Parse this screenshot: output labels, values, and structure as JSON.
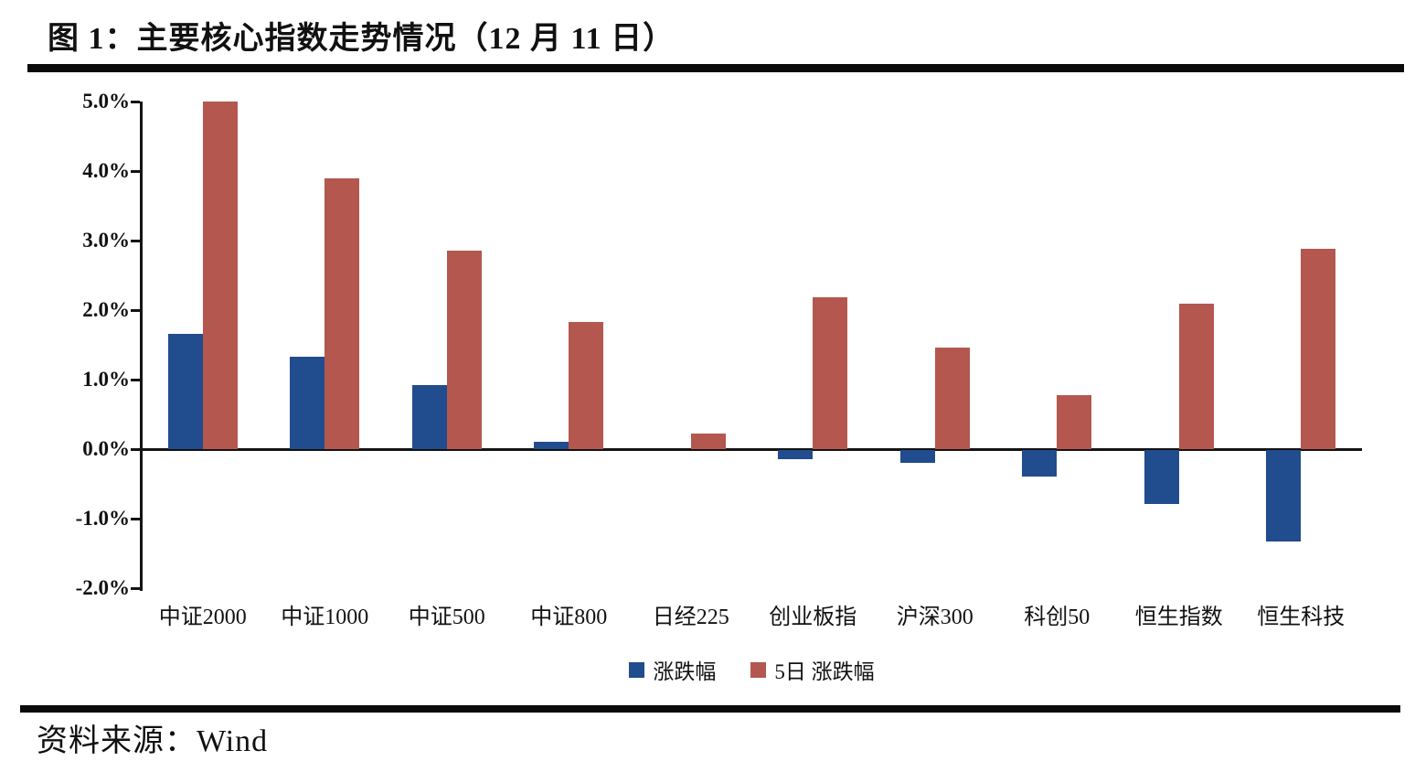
{
  "title": "图 1：主要核心指数走势情况（12 月 11 日）",
  "source": "资料来源：Wind",
  "chart_data": {
    "type": "bar",
    "title": "主要核心指数走势情况（12月11日）",
    "categories": [
      "中证2000",
      "中证1000",
      "中证500",
      "中证800",
      "日经225",
      "创业板指",
      "沪深300",
      "科创50",
      "恒生指数",
      "恒生科技"
    ],
    "series": [
      {
        "name": "涨跌幅",
        "color": "#214C8D",
        "values": [
          1.66,
          1.33,
          0.92,
          0.1,
          0.0,
          -0.13,
          -0.18,
          -0.38,
          -0.78,
          -1.32
        ]
      },
      {
        "name": "5日 涨跌幅",
        "color": "#B4574F",
        "values": [
          5.0,
          3.9,
          2.85,
          1.83,
          0.22,
          2.18,
          1.46,
          0.77,
          2.09,
          2.88
        ]
      }
    ],
    "xlabel": "",
    "ylabel": "",
    "ylim": [
      -2.0,
      5.0
    ],
    "yticks": [
      {
        "value": 5,
        "label": "5.0%"
      },
      {
        "value": 4,
        "label": "4.0%"
      },
      {
        "value": 3,
        "label": "3.0%"
      },
      {
        "value": 2,
        "label": "2.0%"
      },
      {
        "value": 1,
        "label": "1.0%"
      },
      {
        "value": 0,
        "label": "0.0%"
      },
      {
        "value": -1,
        "label": "-1.0%"
      },
      {
        "value": -2,
        "label": "-2.0%"
      }
    ],
    "grid": false,
    "legend_position": "bottom"
  }
}
